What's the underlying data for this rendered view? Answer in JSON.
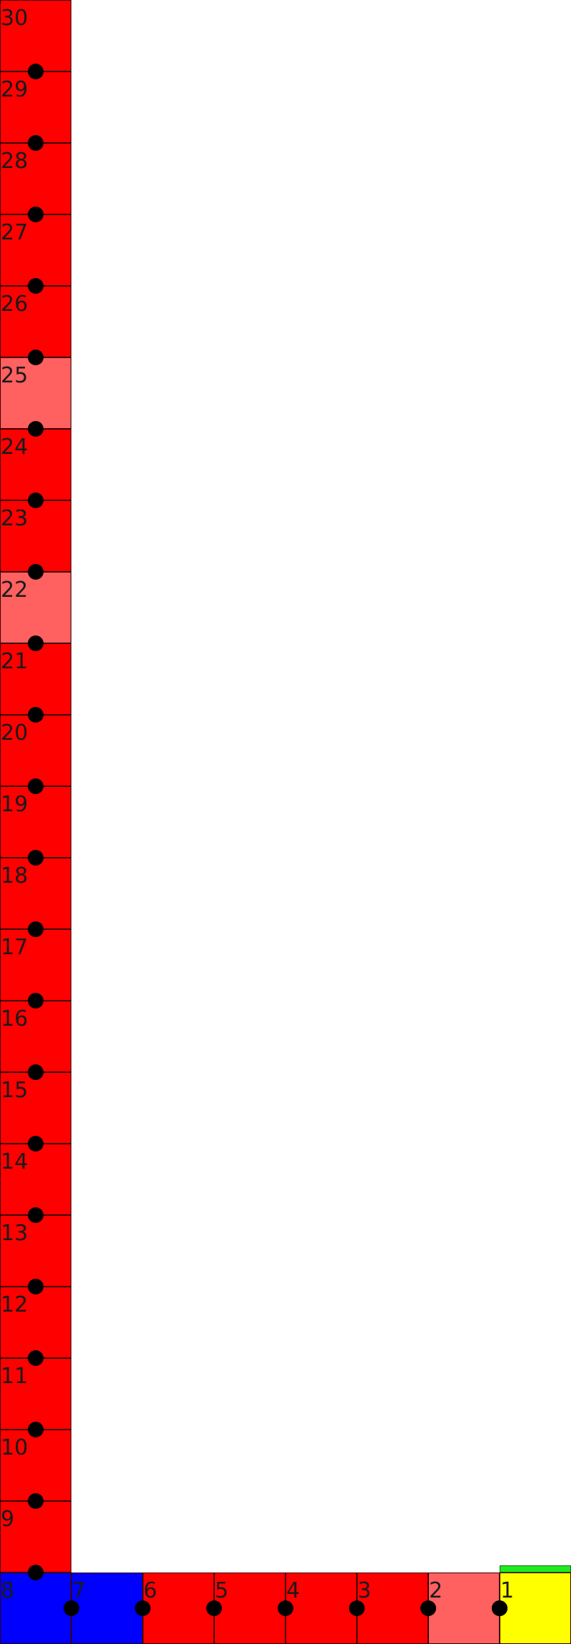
{
  "board": {
    "colors": {
      "normal": "#ff0000",
      "light": "#ff6060",
      "blue": "#0000ff",
      "start": "#ffff00",
      "marker": "#22e822",
      "node": "#000000"
    },
    "cells": [
      {
        "label": "1",
        "color": "start"
      },
      {
        "label": "2",
        "color": "light"
      },
      {
        "label": "3",
        "color": "normal"
      },
      {
        "label": "4",
        "color": "normal"
      },
      {
        "label": "5",
        "color": "normal"
      },
      {
        "label": "6",
        "color": "normal"
      },
      {
        "label": "7",
        "color": "blue"
      },
      {
        "label": "8",
        "color": "blue"
      },
      {
        "label": "9",
        "color": "normal"
      },
      {
        "label": "10",
        "color": "normal"
      },
      {
        "label": "11",
        "color": "normal"
      },
      {
        "label": "12",
        "color": "normal"
      },
      {
        "label": "13",
        "color": "normal"
      },
      {
        "label": "14",
        "color": "normal"
      },
      {
        "label": "15",
        "color": "normal"
      },
      {
        "label": "16",
        "color": "normal"
      },
      {
        "label": "17",
        "color": "normal"
      },
      {
        "label": "18",
        "color": "normal"
      },
      {
        "label": "19",
        "color": "normal"
      },
      {
        "label": "20",
        "color": "normal"
      },
      {
        "label": "21",
        "color": "normal"
      },
      {
        "label": "22",
        "color": "light"
      },
      {
        "label": "23",
        "color": "normal"
      },
      {
        "label": "24",
        "color": "normal"
      },
      {
        "label": "25",
        "color": "light"
      },
      {
        "label": "26",
        "color": "normal"
      },
      {
        "label": "27",
        "color": "normal"
      },
      {
        "label": "28",
        "color": "normal"
      },
      {
        "label": "29",
        "color": "normal"
      },
      {
        "label": "30",
        "color": "normal"
      }
    ]
  }
}
